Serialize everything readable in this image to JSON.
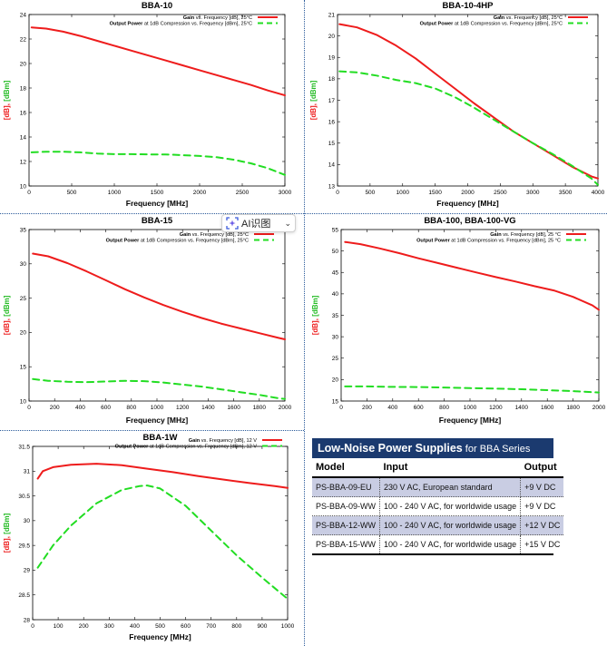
{
  "ai_widget": {
    "label": "AI识图",
    "icon": "scan-icon"
  },
  "colors": {
    "gain": "#ee1c1c",
    "output": "#22dd22",
    "table_header_bg": "#1b3a6f",
    "row_shade": "#c9cde3"
  },
  "charts": [
    {
      "id": "bba10",
      "title": "BBA-10",
      "xlabel": "Frequency [MHz]",
      "ylabel_red": "[dB],",
      "ylabel_green": "[dBm]",
      "legend": [
        {
          "bold": "Gain",
          "rest": " vs. Frequency [dB], 25°C"
        },
        {
          "bold": "Output Power",
          "rest": " at 1dB Compression vs. Frequency [dBm], 25°C"
        }
      ],
      "xticks": [
        "0",
        "500",
        "1000",
        "1500",
        "2000",
        "2500",
        "3000"
      ],
      "yticks": [
        "10",
        "12",
        "14",
        "16",
        "18",
        "20",
        "22",
        "24"
      ],
      "xlim": [
        0,
        3000
      ],
      "ylim": [
        10,
        24
      ],
      "series": [
        {
          "name": "Gain",
          "x": [
            30,
            200,
            400,
            600,
            800,
            1000,
            1200,
            1400,
            1600,
            1800,
            2000,
            2200,
            2400,
            2600,
            2800,
            3000
          ],
          "y": [
            22.95,
            22.85,
            22.6,
            22.25,
            21.85,
            21.45,
            21.05,
            20.65,
            20.25,
            19.85,
            19.45,
            19.05,
            18.65,
            18.25,
            17.8,
            17.4
          ]
        },
        {
          "name": "Output Power",
          "x": [
            30,
            200,
            400,
            600,
            800,
            1000,
            1200,
            1400,
            1600,
            1800,
            2000,
            2200,
            2400,
            2600,
            2800,
            3000
          ],
          "y": [
            12.75,
            12.8,
            12.8,
            12.75,
            12.65,
            12.6,
            12.6,
            12.58,
            12.58,
            12.52,
            12.45,
            12.35,
            12.15,
            11.85,
            11.45,
            10.9
          ]
        }
      ]
    },
    {
      "id": "bba10-4hp",
      "title": "BBA-10-4HP",
      "xlabel": "Frequency [MHz]",
      "ylabel_red": "[dB],",
      "ylabel_green": "[dBm]",
      "legend": [
        {
          "bold": "Gain",
          "rest": " vs. Frequency [dB], 25°C"
        },
        {
          "bold": "Output Power",
          "rest": " at 1dB Compression vs. Frequency [dBm], 25°C"
        }
      ],
      "xticks": [
        "0",
        "500",
        "1000",
        "1500",
        "2000",
        "2500",
        "3000",
        "3500",
        "4000"
      ],
      "yticks": [
        "13",
        "14",
        "15",
        "16",
        "17",
        "18",
        "19",
        "20",
        "21"
      ],
      "xlim": [
        0,
        4000
      ],
      "ylim": [
        13,
        21
      ],
      "series": [
        {
          "name": "Gain",
          "x": [
            30,
            300,
            600,
            900,
            1200,
            1500,
            1800,
            2100,
            2400,
            2700,
            3000,
            3300,
            3600,
            3900,
            4000
          ],
          "y": [
            20.55,
            20.4,
            20.05,
            19.55,
            18.95,
            18.25,
            17.55,
            16.85,
            16.2,
            15.55,
            15.0,
            14.45,
            13.9,
            13.45,
            13.35
          ]
        },
        {
          "name": "Output Power",
          "x": [
            30,
            300,
            600,
            900,
            1200,
            1500,
            1800,
            2100,
            2400,
            2700,
            3000,
            3300,
            3600,
            3900,
            4000
          ],
          "y": [
            18.35,
            18.3,
            18.15,
            17.95,
            17.8,
            17.55,
            17.15,
            16.65,
            16.1,
            15.55,
            15.0,
            14.5,
            13.95,
            13.35,
            13.05
          ]
        }
      ]
    },
    {
      "id": "bba15",
      "title": "BBA-15",
      "xlabel": "Frequency [MHz]",
      "ylabel_red": "[dB],",
      "ylabel_green": "[dBm]",
      "legend": [
        {
          "bold": "Gain",
          "rest": " vs. Frequency [dB], 25°C"
        },
        {
          "bold": "Output Power",
          "rest": " at 1dB Compression vs. Frequency [dBm], 25°C"
        }
      ],
      "xticks": [
        "0",
        "200",
        "400",
        "600",
        "800",
        "1000",
        "1200",
        "1400",
        "1600",
        "1800",
        "2000"
      ],
      "yticks": [
        "10",
        "15",
        "20",
        "25",
        "30",
        "35"
      ],
      "xlim": [
        0,
        2000
      ],
      "ylim": [
        10,
        35
      ],
      "series": [
        {
          "name": "Gain",
          "x": [
            30,
            150,
            300,
            450,
            600,
            750,
            900,
            1050,
            1200,
            1350,
            1500,
            1650,
            1800,
            1950,
            2000
          ],
          "y": [
            31.5,
            31.1,
            30.1,
            28.9,
            27.6,
            26.3,
            25.1,
            24.0,
            23.0,
            22.1,
            21.3,
            20.6,
            19.9,
            19.2,
            19.0
          ]
        },
        {
          "name": "Output Power",
          "x": [
            30,
            150,
            300,
            450,
            600,
            750,
            900,
            1050,
            1200,
            1350,
            1500,
            1650,
            1800,
            1950,
            2000
          ],
          "y": [
            13.2,
            12.95,
            12.8,
            12.75,
            12.85,
            12.95,
            12.9,
            12.7,
            12.4,
            12.1,
            11.7,
            11.3,
            10.9,
            10.4,
            10.3
          ]
        }
      ]
    },
    {
      "id": "bba100",
      "title": "BBA-100, BBA-100-VG",
      "xlabel": "Frequency [MHz]",
      "ylabel_red": "[dB],",
      "ylabel_green": "[dBm]",
      "legend": [
        {
          "bold": "Gain",
          "rest": " vs. Frequency [dB], 25 °C"
        },
        {
          "bold": "Output Power",
          "rest": " at 1dB Compression vs. Frequency [dBm], 25 °C"
        }
      ],
      "xticks": [
        "0",
        "200",
        "400",
        "600",
        "800",
        "1000",
        "1200",
        "1400",
        "1600",
        "1800",
        "2000"
      ],
      "yticks": [
        "15",
        "20",
        "25",
        "30",
        "35",
        "40",
        "45",
        "50",
        "55"
      ],
      "xlim": [
        0,
        2000
      ],
      "ylim": [
        15,
        55
      ],
      "series": [
        {
          "name": "Gain",
          "x": [
            30,
            150,
            300,
            450,
            600,
            750,
            900,
            1050,
            1200,
            1350,
            1500,
            1650,
            1800,
            1950,
            2000
          ],
          "y": [
            52.1,
            51.6,
            50.6,
            49.5,
            48.3,
            47.2,
            46.1,
            45.0,
            43.9,
            42.9,
            41.8,
            40.8,
            39.3,
            37.3,
            36.3
          ]
        },
        {
          "name": "Output Power",
          "x": [
            30,
            200,
            400,
            600,
            800,
            1000,
            1200,
            1400,
            1600,
            1800,
            2000
          ],
          "y": [
            18.4,
            18.4,
            18.3,
            18.25,
            18.15,
            18.0,
            17.9,
            17.75,
            17.55,
            17.3,
            17.0
          ]
        }
      ]
    },
    {
      "id": "bba1w",
      "title": "BBA-1W",
      "xlabel": "Frequency [MHz]",
      "ylabel_red": "[dB],",
      "ylabel_green": "[dBm]",
      "legend": [
        {
          "bold": "Gain",
          "rest": " vs. Frequency [dB], 12 V"
        },
        {
          "bold": "Output Power",
          "rest": " at 1dB Compression vs. Frequency [dBm], 12 V"
        }
      ],
      "xticks": [
        "0",
        "100",
        "200",
        "300",
        "400",
        "500",
        "600",
        "700",
        "800",
        "900",
        "1000"
      ],
      "yticks": [
        "28",
        "28.5",
        "29",
        "29.5",
        "30",
        "30.5",
        "31",
        "31.5"
      ],
      "xlim": [
        0,
        1000
      ],
      "ylim": [
        28,
        31.5
      ],
      "series": [
        {
          "name": "Gain",
          "x": [
            20,
            40,
            80,
            150,
            250,
            350,
            450,
            550,
            650,
            750,
            850,
            950,
            1000
          ],
          "y": [
            30.85,
            31.0,
            31.08,
            31.13,
            31.15,
            31.12,
            31.05,
            30.98,
            30.9,
            30.83,
            30.76,
            30.7,
            30.66
          ]
        },
        {
          "name": "Output Power",
          "x": [
            20,
            80,
            150,
            250,
            350,
            420,
            450,
            500,
            600,
            700,
            800,
            900,
            1000
          ],
          "y": [
            29.05,
            29.5,
            29.9,
            30.35,
            30.62,
            30.7,
            30.71,
            30.65,
            30.3,
            29.8,
            29.3,
            28.85,
            28.42
          ]
        }
      ]
    }
  ],
  "power_supplies": {
    "title_bold": "Low-Noise Power Supplies",
    "title_rest": " for BBA Series",
    "headers": [
      "Model",
      "Input",
      "Output"
    ],
    "rows": [
      [
        "PS-BBA-09-EU",
        "230 V AC, European standard",
        "+9 V DC"
      ],
      [
        "PS-BBA-09-WW",
        "100 - 240 V AC, for worldwide usage",
        "+9 V DC"
      ],
      [
        "PS-BBA-12-WW",
        "100 - 240 V AC, for worldwide usage",
        "+12 V DC"
      ],
      [
        "PS-BBA-15-WW",
        "100 - 240 V AC, for worldwide usage",
        "+15 V DC"
      ]
    ]
  }
}
